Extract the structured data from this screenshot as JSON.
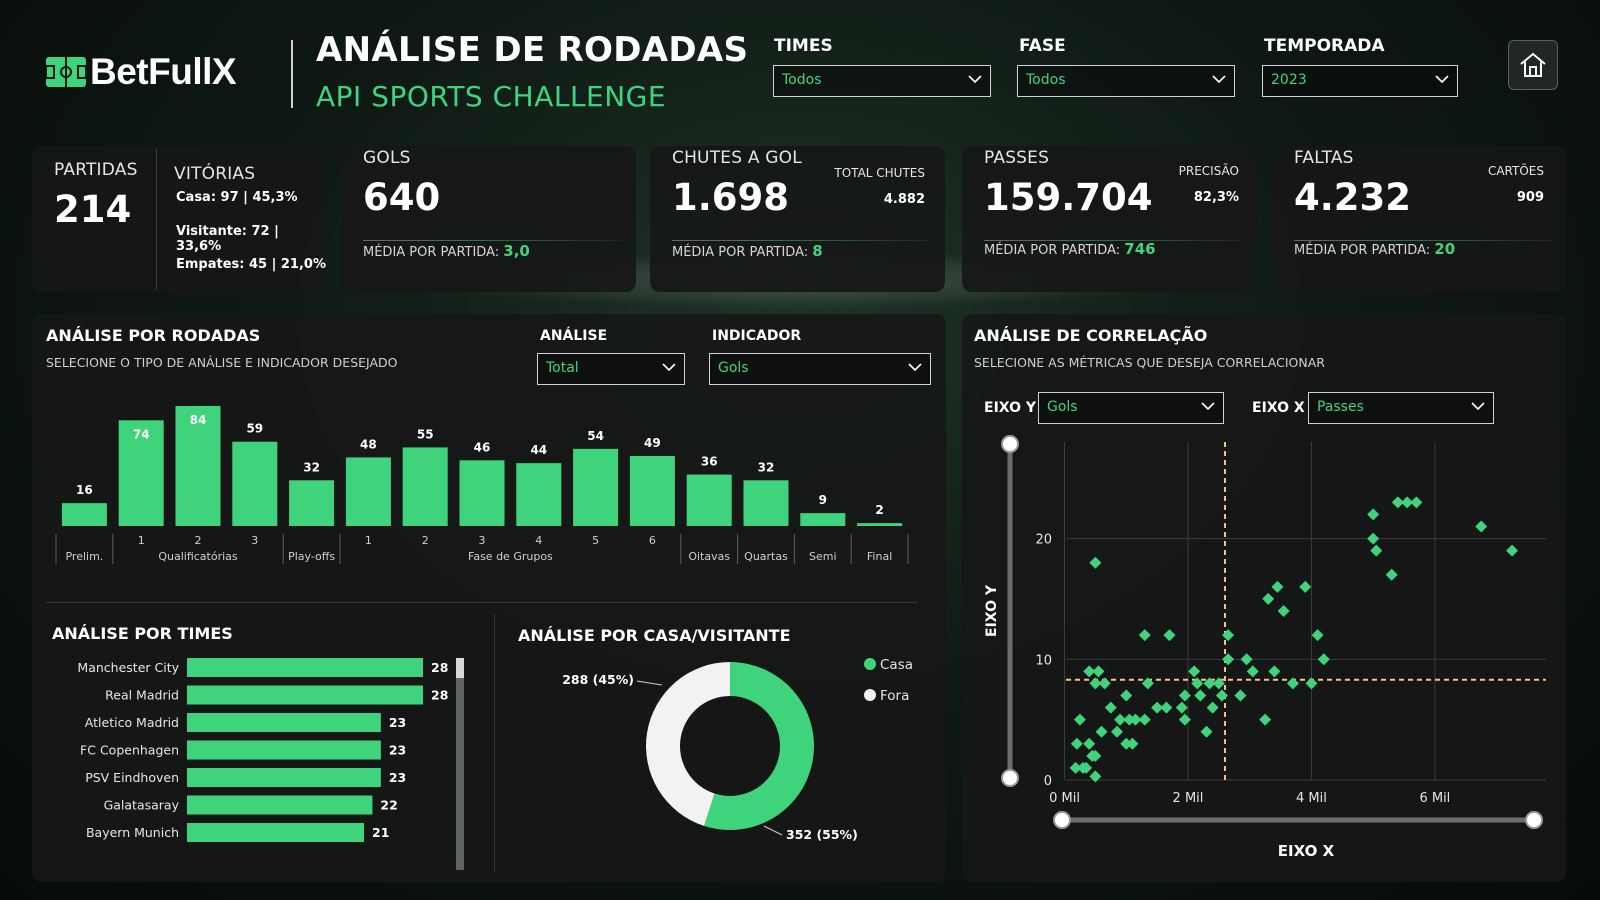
{
  "brand": {
    "logo_text": "BetFullX"
  },
  "header": {
    "title": "ANÁLISE DE RODADAS",
    "subtitle": "API SPORTS CHALLENGE"
  },
  "filters": {
    "times": {
      "label": "TIMES",
      "value": "Todos"
    },
    "fase": {
      "label": "FASE",
      "value": "Todos"
    },
    "temporada": {
      "label": "TEMPORADA",
      "value": "2023"
    }
  },
  "home_icon": "home-icon",
  "kpis": {
    "partidas": {
      "label": "PARTIDAS",
      "value": "214"
    },
    "vitorias": {
      "label": "VITÓRIAS",
      "casa": "Casa: 97 | 45,3%",
      "visitante": "Visitante: 72 | 33,6%",
      "empates": "Empates: 45 | 21,0%"
    },
    "gols": {
      "label": "GOLS",
      "value": "640",
      "avg_label": "MÉDIA POR PARTIDA:",
      "avg_value": "3,0"
    },
    "chutes": {
      "label": "CHUTES A GOL",
      "value": "1.698",
      "extra_label": "TOTAL CHUTES",
      "extra_value": "4.882",
      "avg_label": "MÉDIA POR PARTIDA:",
      "avg_value": "8"
    },
    "passes": {
      "label": "PASSES",
      "value": "159.704",
      "extra_label": "PRECISÃO",
      "extra_value": "82,3%",
      "avg_label": "MÉDIA POR PARTIDA:",
      "avg_value": "746"
    },
    "faltas": {
      "label": "FALTAS",
      "value": "4.232",
      "extra_label": "CARTÕES",
      "extra_value": "909",
      "avg_label": "MÉDIA POR PARTIDA:",
      "avg_value": "20"
    }
  },
  "rodadas": {
    "title": "ANÁLISE POR RODADAS",
    "subtitle": "SELECIONE O TIPO DE ANÁLISE E INDICADOR DESEJADO",
    "analise": {
      "label": "ANÁLISE",
      "value": "Total"
    },
    "indicador": {
      "label": "INDICADOR",
      "value": "Gols"
    }
  },
  "times_section": {
    "title": "ANÁLISE POR TIMES"
  },
  "casa_section": {
    "title": "ANÁLISE POR CASA/VISITANTE"
  },
  "correlacao": {
    "title": "ANÁLISE DE CORRELAÇÃO",
    "subtitle": "SELECIONE AS MÉTRICAS QUE DESEJA CORRELACIONAR",
    "eixo_y": {
      "label": "EIXO Y",
      "value": "Gols"
    },
    "eixo_x": {
      "label": "EIXO X",
      "value": "Passes"
    }
  },
  "chart_data": [
    {
      "type": "bar",
      "categories": [
        "Prelim.",
        "1",
        "2",
        "3",
        "Play-offs",
        "1",
        "2",
        "3",
        "4",
        "5",
        "6",
        "Oitavas",
        "Quartas",
        "Semi",
        "Final"
      ],
      "groups": [
        {
          "label": "",
          "start": 0,
          "end": 0
        },
        {
          "label": "Qualificatórias",
          "start": 1,
          "end": 3
        },
        {
          "label": "",
          "start": 4,
          "end": 4
        },
        {
          "label": "Fase de Grupos",
          "start": 5,
          "end": 10
        },
        {
          "label": "",
          "start": 11,
          "end": 11
        },
        {
          "label": "",
          "start": 12,
          "end": 12
        },
        {
          "label": "",
          "start": 13,
          "end": 13
        },
        {
          "label": "",
          "start": 14,
          "end": 14
        }
      ],
      "values": [
        16,
        74,
        84,
        59,
        32,
        48,
        55,
        46,
        44,
        54,
        49,
        36,
        32,
        9,
        2
      ],
      "color": "#3fd47c",
      "ylim": [
        0,
        84
      ]
    },
    {
      "type": "bar",
      "orientation": "horizontal",
      "categories": [
        "Manchester City",
        "Real Madrid",
        "Atletico Madrid",
        "FC Copenhagen",
        "PSV Eindhoven",
        "Galatasaray",
        "Bayern Munich"
      ],
      "values": [
        28,
        28,
        23,
        23,
        23,
        22,
        21
      ],
      "color": "#3fd47c",
      "xlim": [
        0,
        28
      ]
    },
    {
      "type": "pie",
      "donut": true,
      "labels": [
        "Casa",
        "Fora"
      ],
      "values": [
        352,
        288
      ],
      "percent": [
        55,
        45
      ],
      "data_labels": [
        "352 (55%)",
        "288 (45%)"
      ],
      "colors": [
        "#3fd47c",
        "#f2f2f2"
      ],
      "legend": "top-right"
    },
    {
      "type": "scatter",
      "xlabel": "EIXO X",
      "ylabel": "EIXO Y",
      "xticks": [
        "0 Mil",
        "2 Mil",
        "4 Mil",
        "6 Mil"
      ],
      "xtick_values": [
        0,
        2000,
        4000,
        6000
      ],
      "yticks": [
        "0",
        "10",
        "20"
      ],
      "ytick_values": [
        0,
        10,
        20
      ],
      "xlim": [
        -300,
        7800
      ],
      "ylim": [
        0,
        28
      ],
      "grid": true,
      "reference_lines": {
        "x": 2600,
        "y": 8.3,
        "color": "#f5c38a"
      },
      "color": "#3fd47c",
      "points": [
        [
          250,
          5
        ],
        [
          200,
          3
        ],
        [
          180,
          1
        ],
        [
          300,
          1
        ],
        [
          400,
          3
        ],
        [
          450,
          2
        ],
        [
          350,
          1
        ],
        [
          500,
          0.3
        ],
        [
          500,
          2
        ],
        [
          600,
          4
        ],
        [
          400,
          9
        ],
        [
          550,
          9
        ],
        [
          500,
          8
        ],
        [
          650,
          8
        ],
        [
          500,
          18
        ],
        [
          750,
          6
        ],
        [
          850,
          4
        ],
        [
          900,
          5
        ],
        [
          1000,
          7
        ],
        [
          1000,
          3
        ],
        [
          1050,
          5
        ],
        [
          1150,
          5
        ],
        [
          1100,
          3
        ],
        [
          1300,
          5
        ],
        [
          1350,
          8
        ],
        [
          1300,
          12
        ],
        [
          1700,
          12
        ],
        [
          1500,
          6
        ],
        [
          1650,
          6
        ],
        [
          1900,
          6
        ],
        [
          1950,
          7
        ],
        [
          1950,
          5
        ],
        [
          2100,
          9
        ],
        [
          2150,
          8
        ],
        [
          2200,
          7
        ],
        [
          2300,
          4
        ],
        [
          2400,
          6
        ],
        [
          2350,
          8
        ],
        [
          2500,
          8
        ],
        [
          2550,
          7
        ],
        [
          2650,
          10
        ],
        [
          2650,
          12
        ],
        [
          2850,
          7
        ],
        [
          2950,
          10
        ],
        [
          3050,
          9
        ],
        [
          3300,
          15
        ],
        [
          3450,
          16
        ],
        [
          3400,
          9
        ],
        [
          3550,
          14
        ],
        [
          3250,
          5
        ],
        [
          3700,
          8
        ],
        [
          3900,
          16
        ],
        [
          4000,
          8
        ],
        [
          4100,
          12
        ],
        [
          4200,
          10
        ],
        [
          5000,
          22
        ],
        [
          5000,
          20
        ],
        [
          5050,
          19
        ],
        [
          5300,
          17
        ],
        [
          5400,
          23
        ],
        [
          5550,
          23
        ],
        [
          5700,
          23
        ],
        [
          6750,
          21
        ],
        [
          7250,
          19
        ]
      ]
    }
  ]
}
